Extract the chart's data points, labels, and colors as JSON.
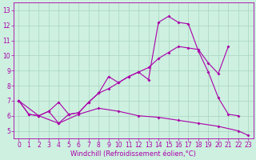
{
  "xlabel": "Windchill (Refroidissement éolien,°C)",
  "xlim": [
    -0.5,
    23.5
  ],
  "ylim": [
    4.5,
    13.5
  ],
  "xticks": [
    0,
    1,
    2,
    3,
    4,
    5,
    6,
    7,
    8,
    9,
    10,
    11,
    12,
    13,
    14,
    15,
    16,
    17,
    18,
    19,
    20,
    21,
    22,
    23
  ],
  "yticks": [
    5,
    6,
    7,
    8,
    9,
    10,
    11,
    12,
    13
  ],
  "bg_color": "#cdf0e0",
  "grid_color": "#aad4c0",
  "line_color": "#aa00aa",
  "line1_x": [
    0,
    1,
    2,
    3,
    4,
    5,
    6,
    7,
    8,
    9,
    10,
    11,
    12,
    13,
    14,
    15,
    16,
    17,
    18,
    19,
    20,
    21,
    22
  ],
  "line1_y": [
    7.0,
    6.1,
    6.0,
    6.3,
    5.5,
    6.1,
    6.2,
    6.9,
    7.5,
    8.6,
    8.2,
    8.6,
    8.9,
    8.4,
    12.2,
    12.6,
    12.2,
    12.1,
    10.3,
    8.9,
    7.2,
    6.1,
    6.0
  ],
  "line2_x": [
    0,
    1,
    2,
    3,
    4,
    5,
    6,
    7,
    8,
    9,
    10,
    11,
    12,
    13,
    14,
    15,
    16,
    17,
    18,
    19,
    20,
    21
  ],
  "line2_y": [
    7.0,
    6.1,
    6.0,
    6.3,
    6.9,
    6.1,
    6.2,
    6.9,
    7.5,
    7.8,
    8.2,
    8.6,
    8.9,
    9.2,
    9.8,
    10.2,
    10.6,
    10.5,
    10.4,
    9.5,
    8.8,
    10.6
  ],
  "line3_x": [
    0,
    2,
    4,
    6,
    8,
    10,
    12,
    14,
    16,
    18,
    20,
    22,
    23
  ],
  "line3_y": [
    7.0,
    6.0,
    5.5,
    6.1,
    6.5,
    6.3,
    6.0,
    5.9,
    5.7,
    5.5,
    5.3,
    5.0,
    4.7
  ],
  "fontsize": 5.5,
  "xlabel_fontsize": 6
}
